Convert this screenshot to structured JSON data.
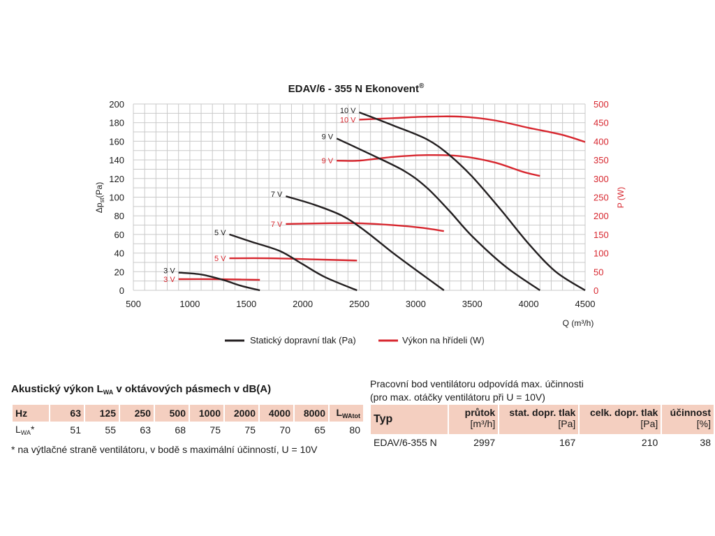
{
  "chart_data": {
    "type": "line",
    "title": "EDAV/6 - 355 N Ekonovent",
    "title_mark": "®",
    "xlabel": "Q (m³/h)",
    "ylabel": "Δpst(Pa)",
    "y2label": "P (W)",
    "xlim": [
      500,
      4500
    ],
    "ylim": [
      0,
      200
    ],
    "y2lim": [
      0,
      500
    ],
    "xticks": [
      "500",
      "1000",
      "1500",
      "2000",
      "2500",
      "3000",
      "3500",
      "4000",
      "4500"
    ],
    "yticks": [
      "0",
      "20",
      "40",
      "60",
      "80",
      "100",
      "120",
      "140",
      "160",
      "180",
      "200"
    ],
    "y2ticks": [
      "0",
      "50",
      "100",
      "150",
      "200",
      "250",
      "300",
      "350",
      "400",
      "450",
      "500"
    ],
    "grid": true,
    "colors": {
      "pressure": "#231f20",
      "power": "#d7262e",
      "grid": "#c9c9c9",
      "y2axis": "#d7262e"
    },
    "legend": {
      "placement": "bottom-center",
      "pressure_label": "Statický dopravní tlak (Pa)",
      "power_label": "Výkon na hřídeli (W)"
    },
    "pressure_series": [
      {
        "name": "3 V",
        "points": [
          [
            900,
            19
          ],
          [
            1100,
            17
          ],
          [
            1300,
            11
          ],
          [
            1450,
            5
          ],
          [
            1620,
            0
          ]
        ]
      },
      {
        "name": "5 V",
        "points": [
          [
            1350,
            60
          ],
          [
            1550,
            52
          ],
          [
            1800,
            42
          ],
          [
            2000,
            28
          ],
          [
            2200,
            14
          ],
          [
            2480,
            0
          ]
        ]
      },
      {
        "name": "7 V",
        "points": [
          [
            1850,
            101
          ],
          [
            2100,
            92
          ],
          [
            2350,
            80
          ],
          [
            2550,
            64
          ],
          [
            2800,
            40
          ],
          [
            3000,
            22
          ],
          [
            3250,
            0
          ]
        ]
      },
      {
        "name": "9 V",
        "points": [
          [
            2300,
            163
          ],
          [
            2600,
            146
          ],
          [
            2900,
            128
          ],
          [
            3100,
            110
          ],
          [
            3300,
            85
          ],
          [
            3500,
            58
          ],
          [
            3800,
            25
          ],
          [
            4100,
            0
          ]
        ]
      },
      {
        "name": "10 V",
        "points": [
          [
            2500,
            191
          ],
          [
            2800,
            177
          ],
          [
            3100,
            162
          ],
          [
            3300,
            145
          ],
          [
            3500,
            122
          ],
          [
            3750,
            87
          ],
          [
            4000,
            50
          ],
          [
            4240,
            20
          ],
          [
            4500,
            0
          ]
        ]
      }
    ],
    "power_series": [
      {
        "name": "3 V",
        "points": [
          [
            900,
            30
          ],
          [
            1200,
            30
          ],
          [
            1450,
            29
          ],
          [
            1620,
            28
          ]
        ]
      },
      {
        "name": "5 V",
        "points": [
          [
            1350,
            86
          ],
          [
            1700,
            86
          ],
          [
            2100,
            83
          ],
          [
            2480,
            80
          ]
        ]
      },
      {
        "name": "7 V",
        "points": [
          [
            1850,
            178
          ],
          [
            2200,
            180
          ],
          [
            2500,
            180
          ],
          [
            2800,
            175
          ],
          [
            3050,
            168
          ],
          [
            3250,
            159
          ]
        ]
      },
      {
        "name": "9 V",
        "points": [
          [
            2300,
            348
          ],
          [
            2500,
            348
          ],
          [
            2800,
            358
          ],
          [
            3100,
            363
          ],
          [
            3400,
            360
          ],
          [
            3700,
            343
          ],
          [
            3950,
            318
          ],
          [
            4100,
            307
          ]
        ]
      },
      {
        "name": "10 V",
        "points": [
          [
            2500,
            458
          ],
          [
            2800,
            462
          ],
          [
            3100,
            466
          ],
          [
            3400,
            466
          ],
          [
            3700,
            456
          ],
          [
            4000,
            436
          ],
          [
            4300,
            417
          ],
          [
            4500,
            398
          ]
        ]
      }
    ]
  },
  "acoustic": {
    "title_pre": "Akustický výkon L",
    "title_sub": "WA",
    "title_post": " v oktávových pásmech v dB(A)",
    "header_first": "Hz",
    "bands": [
      "63",
      "125",
      "250",
      "500",
      "1000",
      "2000",
      "4000",
      "8000"
    ],
    "total_label": "L",
    "total_label_sub": "WAtot",
    "row_label": "L",
    "row_label_sub": "WA",
    "row_label_mark": "*",
    "values": [
      "51",
      "55",
      "63",
      "68",
      "75",
      "75",
      "70",
      "65",
      "80"
    ],
    "footnote": "* na výtlačné straně ventilátoru, v bodě s maximální účinností, U = 10V"
  },
  "working_point": {
    "title_line1": "Pracovní bod ventilátoru odpovídá max. účinnosti",
    "title_line2": "(pro max. otáčky ventilátoru při U = 10V)",
    "col_type": "Typ",
    "columns": [
      {
        "name": "průtok",
        "unit": "[m³/h]"
      },
      {
        "name": "stat. dopr. tlak",
        "unit": "[Pa]"
      },
      {
        "name": "celk. dopr. tlak",
        "unit": "[Pa]"
      },
      {
        "name": "účinnost",
        "unit": "[%]"
      }
    ],
    "row": {
      "type": "EDAV/6-355 N",
      "values": [
        "2997",
        "167",
        "210",
        "38"
      ]
    }
  }
}
